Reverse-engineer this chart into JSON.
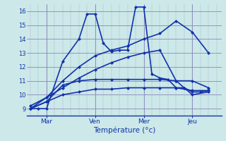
{
  "title": "Température (°c)",
  "bg_color": "#cce8e8",
  "grid_color": "#8888bb",
  "line_color": "#1133aa",
  "x_tick_labels": [
    "Mar",
    "Ven",
    "Mer",
    "Jeu"
  ],
  "x_tick_positions": [
    1,
    4,
    7,
    10
  ],
  "ylim": [
    8.5,
    16.5
  ],
  "yticks": [
    9,
    10,
    11,
    12,
    13,
    14,
    15,
    16
  ],
  "xlim": [
    -0.2,
    11.8
  ],
  "series": [
    {
      "x": [
        0,
        0.5,
        1,
        2,
        3,
        3.5,
        4,
        4.5,
        5,
        5.5,
        6,
        6.5,
        7,
        7.5,
        8,
        8.5,
        9,
        9.5,
        10,
        10.5,
        11
      ],
      "y": [
        9.0,
        9.0,
        9.0,
        12.4,
        14.0,
        15.8,
        15.8,
        13.7,
        13.1,
        13.2,
        13.2,
        16.3,
        16.3,
        11.5,
        11.2,
        11.1,
        10.5,
        10.5,
        10.2,
        10.2,
        10.3
      ],
      "marker": "D",
      "ms": 2.0,
      "lw": 1.2
    },
    {
      "x": [
        0,
        1,
        2,
        3,
        4,
        5,
        6,
        7,
        8,
        9,
        10,
        11
      ],
      "y": [
        9.0,
        9.5,
        10.7,
        11.0,
        11.1,
        11.1,
        11.1,
        11.1,
        11.1,
        11.0,
        11.0,
        10.5
      ],
      "marker": "D",
      "ms": 2.0,
      "lw": 1.2
    },
    {
      "x": [
        0,
        1,
        2,
        3,
        4,
        5,
        6,
        7,
        8,
        9,
        10,
        11
      ],
      "y": [
        9.0,
        9.5,
        10.0,
        10.2,
        10.4,
        10.4,
        10.5,
        10.5,
        10.5,
        10.5,
        10.3,
        10.3
      ],
      "marker": "D",
      "ms": 2.0,
      "lw": 1.2
    },
    {
      "x": [
        0,
        1,
        2,
        3,
        4,
        5,
        6,
        7,
        8,
        9,
        10,
        11
      ],
      "y": [
        9.0,
        9.8,
        11.0,
        12.0,
        12.8,
        13.2,
        13.5,
        14.0,
        14.4,
        15.3,
        14.5,
        13.0
      ],
      "marker": "D",
      "ms": 2.0,
      "lw": 1.2
    },
    {
      "x": [
        0,
        1,
        2,
        3,
        4,
        5,
        6,
        7,
        8,
        9,
        10,
        11
      ],
      "y": [
        9.2,
        9.8,
        10.5,
        11.2,
        11.8,
        12.3,
        12.7,
        13.0,
        13.2,
        11.0,
        10.0,
        10.2
      ],
      "marker": "D",
      "ms": 2.0,
      "lw": 1.2
    }
  ]
}
